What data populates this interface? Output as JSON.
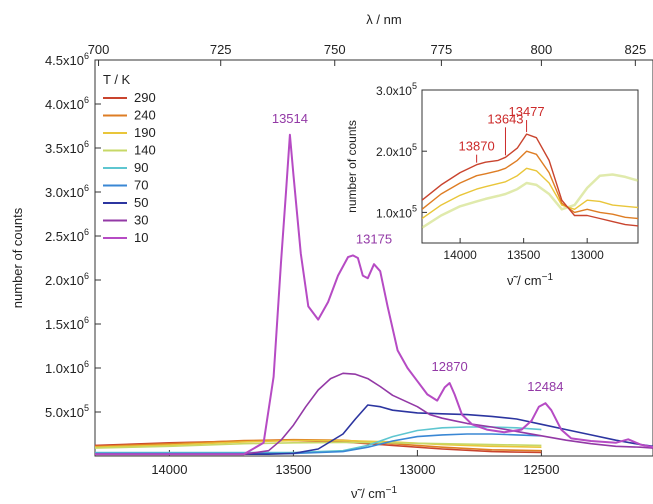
{
  "chart_data": [
    {
      "type": "line",
      "x_unit": "wavenumber",
      "x_label": "ν̃ / cm⁻¹",
      "x_reversed": true,
      "xlim": [
        14300,
        12050
      ],
      "x_ticks": [
        14000,
        13500,
        13000,
        12500
      ],
      "top_axis_label": "λ / nm",
      "top_ticks": [
        700,
        725,
        750,
        775,
        800,
        825
      ],
      "ylabel": "number of counts",
      "ylim": [
        0,
        4500000
      ],
      "y_tick_values": [
        500000,
        1000000,
        1500000,
        2000000,
        2500000,
        3000000,
        3500000,
        4000000,
        4500000
      ],
      "y_tick_labels": [
        "5.0x10^5",
        "1.0x10^6",
        "1.5x10^6",
        "2.0x10^6",
        "2.5x10^6",
        "3.0x10^6",
        "3.5x10^6",
        "4.0x10^6",
        "4.5x10^6"
      ],
      "legend_title": "T / K",
      "legend_position": "top-left",
      "series": [
        {
          "name": "290",
          "color": "#c9442e",
          "x": [
            14300,
            14000,
            13700,
            13500,
            13300,
            13100,
            12900,
            12700,
            12500
          ],
          "y": [
            120000,
            150000,
            170000,
            175000,
            160000,
            120000,
            80000,
            50000,
            40000
          ]
        },
        {
          "name": "240",
          "color": "#de7d24",
          "x": [
            14300,
            14000,
            13700,
            13500,
            13300,
            13100,
            12900,
            12700,
            12500
          ],
          "y": [
            110000,
            140000,
            175000,
            185000,
            180000,
            140000,
            100000,
            70000,
            60000
          ]
        },
        {
          "name": "190",
          "color": "#e9c63a",
          "x": [
            14300,
            14000,
            13700,
            13500,
            13300,
            13100,
            12900,
            12700,
            12500
          ],
          "y": [
            100000,
            125000,
            160000,
            175000,
            175000,
            160000,
            130000,
            110000,
            100000
          ]
        },
        {
          "name": "140",
          "color": "#c7d867",
          "x": [
            14300,
            14000,
            13700,
            13500,
            13300,
            13100,
            12900,
            12700,
            12500
          ],
          "y": [
            90000,
            110000,
            140000,
            150000,
            155000,
            150000,
            140000,
            130000,
            120000
          ]
        },
        {
          "name": "90",
          "color": "#5ec6d0",
          "x": [
            14300,
            14000,
            13700,
            13500,
            13300,
            13200,
            13100,
            13000,
            12900,
            12800,
            12700,
            12600,
            12500
          ],
          "y": [
            40000,
            40000,
            40000,
            40000,
            60000,
            120000,
            220000,
            290000,
            320000,
            330000,
            330000,
            320000,
            300000
          ]
        },
        {
          "name": "70",
          "color": "#3a87d4",
          "x": [
            14300,
            14000,
            13700,
            13500,
            13300,
            13200,
            13100,
            13000,
            12900,
            12800,
            12700,
            12600,
            12500
          ],
          "y": [
            30000,
            30000,
            30000,
            30000,
            50000,
            100000,
            170000,
            220000,
            240000,
            250000,
            250000,
            240000,
            230000
          ]
        },
        {
          "name": "50",
          "color": "#2c35a0",
          "x": [
            14300,
            14000,
            13700,
            13600,
            13500,
            13400,
            13300,
            13250,
            13200,
            13150,
            13100,
            13000,
            12900,
            12800,
            12700,
            12600,
            12500,
            12400,
            12300,
            12200,
            12100,
            12050
          ],
          "y": [
            20000,
            20000,
            20000,
            20000,
            30000,
            80000,
            250000,
            420000,
            580000,
            560000,
            520000,
            490000,
            480000,
            470000,
            450000,
            420000,
            360000,
            300000,
            240000,
            180000,
            130000,
            110000
          ]
        },
        {
          "name": "30",
          "color": "#9339a6",
          "x": [
            14300,
            14000,
            13700,
            13600,
            13550,
            13500,
            13450,
            13400,
            13350,
            13300,
            13250,
            13200,
            13150,
            13100,
            13000,
            12950,
            12900,
            12850,
            12800,
            12700,
            12600,
            12500,
            12400,
            12300,
            12200,
            12100,
            12050
          ],
          "y": [
            20000,
            20000,
            20000,
            60000,
            180000,
            350000,
            560000,
            750000,
            880000,
            940000,
            930000,
            880000,
            790000,
            690000,
            560000,
            470000,
            430000,
            400000,
            370000,
            330000,
            280000,
            230000,
            180000,
            140000,
            110000,
            100000,
            90000
          ]
        },
        {
          "name": "10",
          "color": "#b64bc4",
          "x": [
            14300,
            14000,
            13700,
            13620,
            13580,
            13550,
            13530,
            13514,
            13500,
            13470,
            13440,
            13400,
            13360,
            13320,
            13280,
            13260,
            13240,
            13220,
            13200,
            13175,
            13150,
            13120,
            13080,
            13040,
            13000,
            12960,
            12920,
            12890,
            12870,
            12850,
            12820,
            12780,
            12720,
            12650,
            12580,
            12540,
            12510,
            12484,
            12460,
            12420,
            12380,
            12300,
            12200,
            12150,
            12100,
            12050
          ],
          "y": [
            20000,
            20000,
            20000,
            150000,
            900000,
            2200000,
            3000000,
            3650000,
            3200000,
            2300000,
            1700000,
            1550000,
            1750000,
            2050000,
            2260000,
            2280000,
            2250000,
            2050000,
            2020000,
            2180000,
            2100000,
            1700000,
            1200000,
            1000000,
            850000,
            700000,
            630000,
            780000,
            830000,
            700000,
            470000,
            360000,
            300000,
            270000,
            300000,
            400000,
            560000,
            600000,
            520000,
            300000,
            200000,
            170000,
            150000,
            190000,
            130000,
            100000
          ]
        }
      ],
      "annotations": [
        "13514",
        "13175",
        "12870",
        "12484"
      ]
    },
    {
      "type": "line",
      "x_reversed": true,
      "xlim": [
        14300,
        12600
      ],
      "x_ticks": [
        14000,
        13500,
        13000
      ],
      "x_label": "ν̃ / cm⁻¹",
      "ylabel": "number of counts",
      "ylim": [
        50000,
        300000
      ],
      "y_tick_values": [
        100000,
        200000,
        300000
      ],
      "y_tick_labels": [
        "1.0x10^5",
        "2.0x10^5",
        "3.0x10^5"
      ],
      "series": [
        {
          "name": "290",
          "color": "#c9442e",
          "x": [
            14300,
            14150,
            14000,
            13870,
            13800,
            13700,
            13643,
            13550,
            13477,
            13400,
            13300,
            13200,
            13100,
            13000,
            12900,
            12800,
            12700,
            12600
          ],
          "y": [
            120000,
            145000,
            165000,
            178000,
            182000,
            185000,
            190000,
            205000,
            228000,
            222000,
            185000,
            120000,
            95000,
            95000,
            90000,
            85000,
            80000,
            78000
          ]
        },
        {
          "name": "240",
          "color": "#de7d24",
          "x": [
            14300,
            14150,
            14000,
            13870,
            13800,
            13700,
            13643,
            13550,
            13477,
            13400,
            13300,
            13200,
            13100,
            13000,
            12900,
            12800,
            12700,
            12600
          ],
          "y": [
            105000,
            130000,
            148000,
            160000,
            163000,
            168000,
            172000,
            185000,
            200000,
            195000,
            165000,
            115000,
            100000,
            105000,
            100000,
            97000,
            92000,
            90000
          ]
        },
        {
          "name": "190",
          "color": "#e9c63a",
          "x": [
            14300,
            14150,
            14000,
            13870,
            13800,
            13700,
            13643,
            13550,
            13477,
            13400,
            13300,
            13200,
            13100,
            13000,
            12900,
            12800,
            12700,
            12600
          ],
          "y": [
            90000,
            112000,
            128000,
            138000,
            142000,
            147000,
            150000,
            160000,
            172000,
            168000,
            148000,
            112000,
            105000,
            120000,
            118000,
            112000,
            110000,
            108000
          ]
        },
        {
          "name": "140",
          "color": "#c7d867",
          "x": [
            14300,
            14150,
            14000,
            13870,
            13800,
            13700,
            13643,
            13550,
            13477,
            13400,
            13300,
            13200,
            13100,
            13000,
            12900,
            12800,
            12700,
            12600
          ],
          "y": [
            75000,
            95000,
            110000,
            118000,
            122000,
            127000,
            130000,
            138000,
            148000,
            145000,
            130000,
            105000,
            112000,
            140000,
            160000,
            162000,
            158000,
            152000
          ]
        }
      ],
      "annotations": [
        "13870",
        "13643",
        "13477"
      ]
    }
  ]
}
